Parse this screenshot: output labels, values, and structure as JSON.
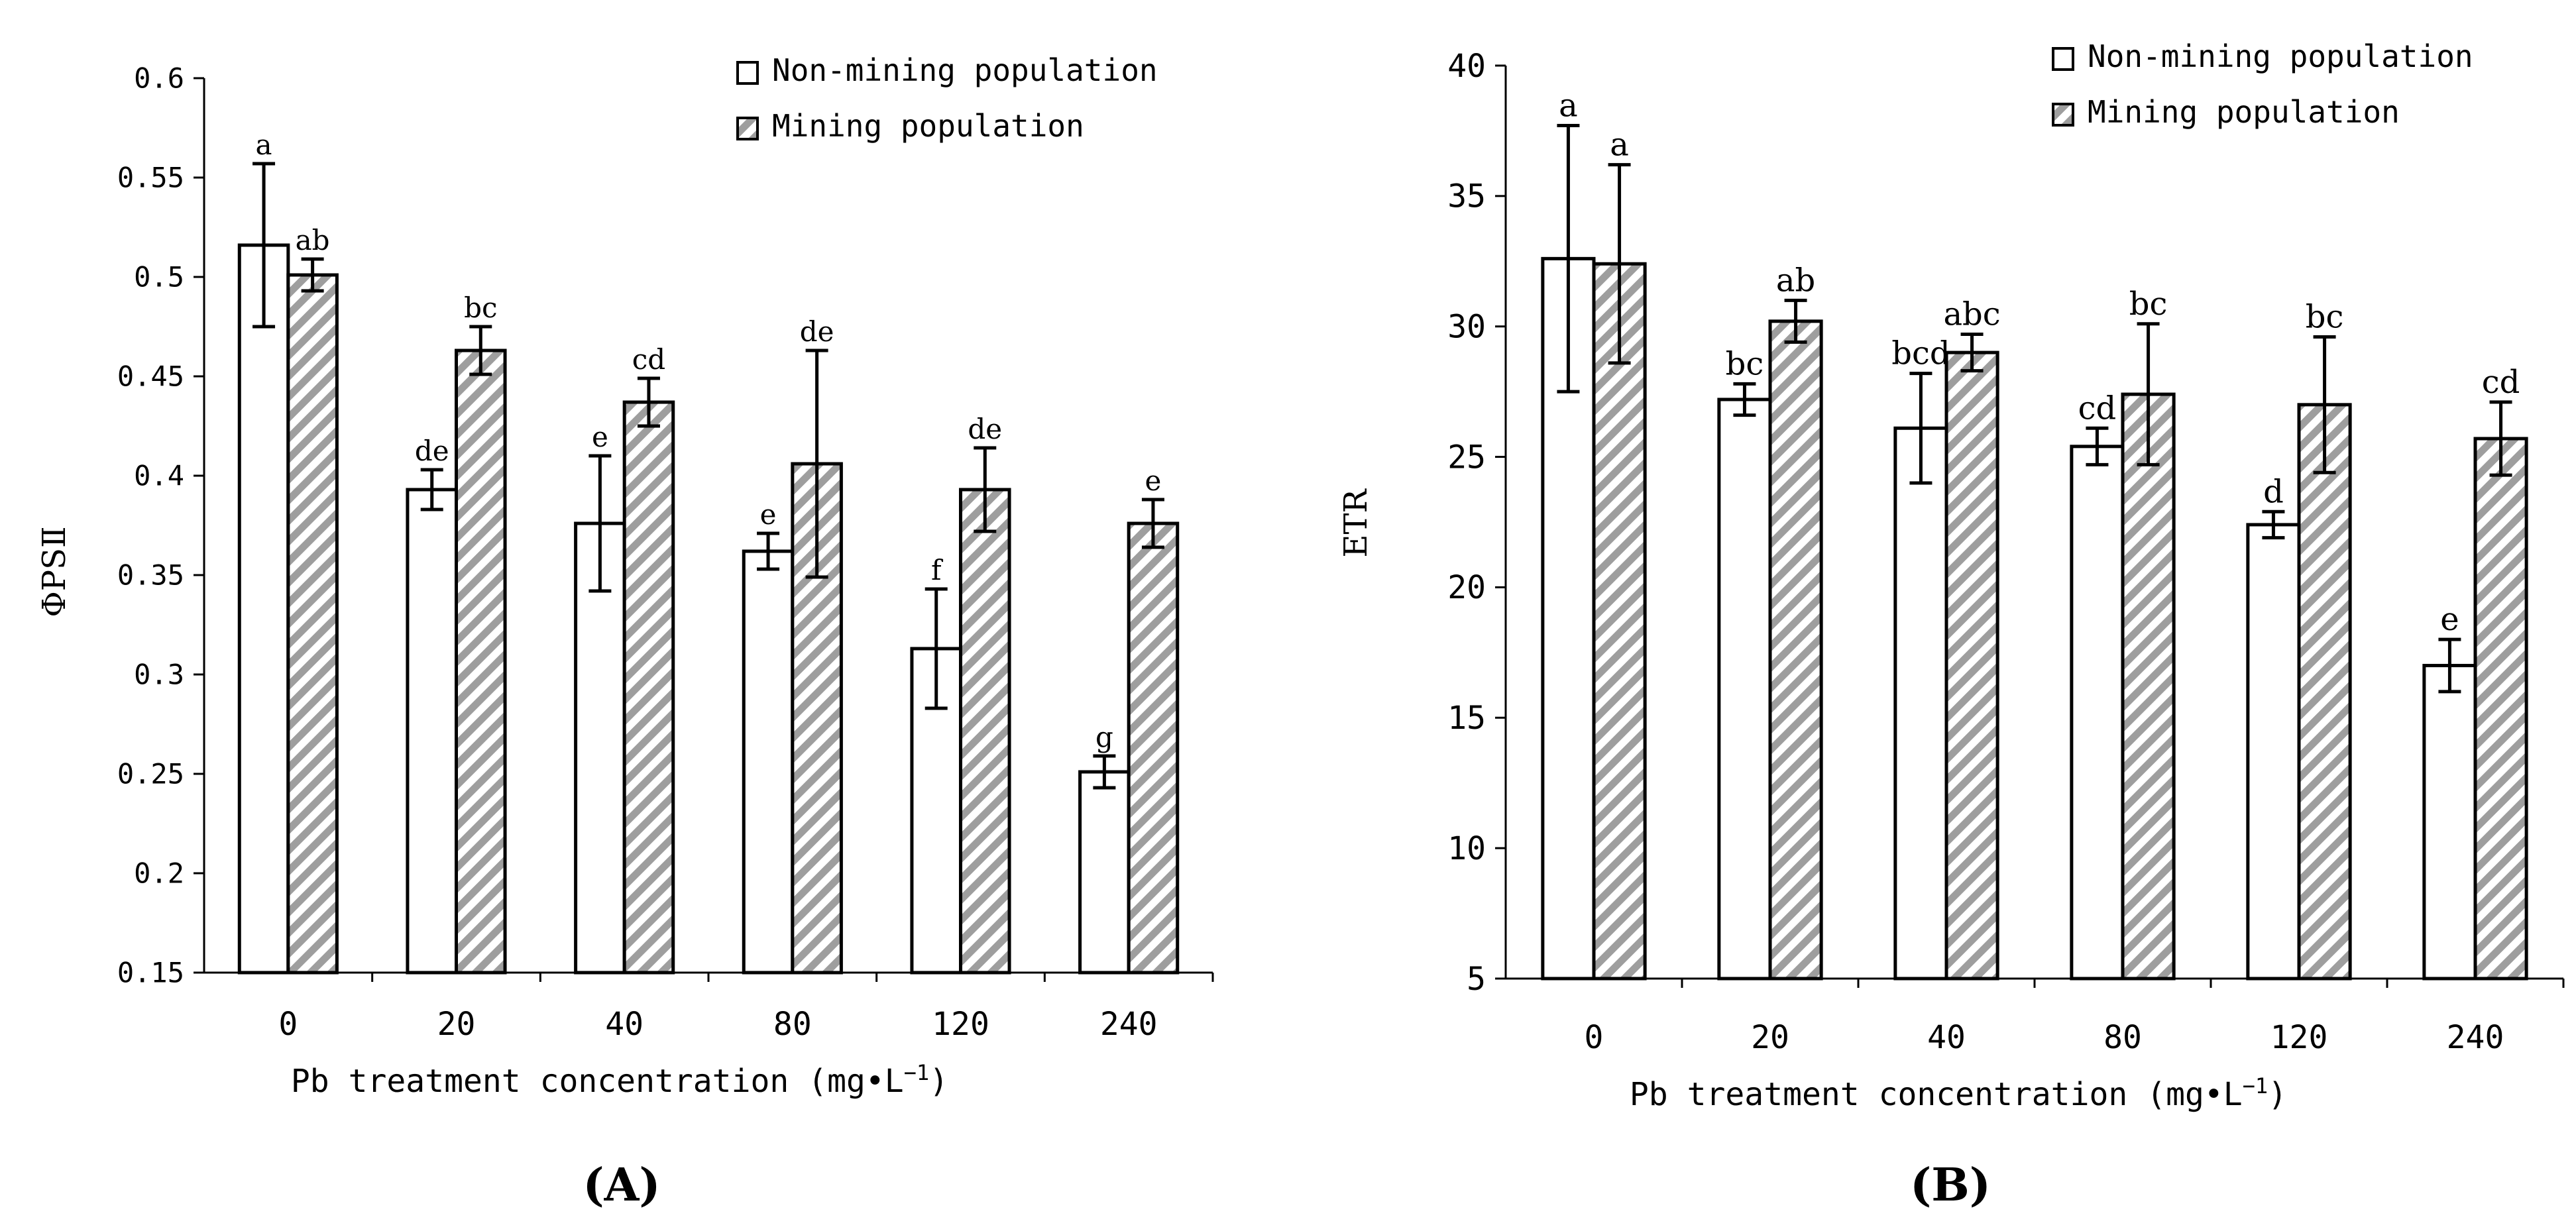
{
  "chart_data": [
    {
      "type": "bar",
      "title": "",
      "panel_label": "(A)",
      "xlabel": "Pb treatment concentration (mg•L",
      "xlabel_sup": "−1",
      "xlabel_close": ")",
      "ylabel": "ΦPSⅡ",
      "categories": [
        "0",
        "20",
        "40",
        "80",
        "120",
        "240"
      ],
      "ylim": [
        0.15,
        0.6
      ],
      "yticks": [
        0.15,
        0.2,
        0.25,
        0.3,
        0.35,
        0.4,
        0.45,
        0.5,
        0.55,
        0.6
      ],
      "ytick_labels": [
        "0.15",
        "0.2",
        "0.25",
        "0.3",
        "0.35",
        "0.4",
        "0.45",
        "0.5",
        "0.55",
        "0.6"
      ],
      "legend_position": "top-right",
      "series": [
        {
          "name": "Non-mining population",
          "pattern": "open",
          "values": [
            0.516,
            0.393,
            0.376,
            0.362,
            0.313,
            0.251
          ],
          "errors": [
            0.041,
            0.01,
            0.034,
            0.009,
            0.03,
            0.008
          ],
          "letters": [
            "a",
            "de",
            "e",
            "e",
            "f",
            "g"
          ]
        },
        {
          "name": "Mining population",
          "pattern": "hatched",
          "values": [
            0.501,
            0.463,
            0.437,
            0.406,
            0.393,
            0.376
          ],
          "errors": [
            0.008,
            0.012,
            0.012,
            0.057,
            0.021,
            0.012
          ],
          "letters": [
            "ab",
            "bc",
            "cd",
            "de",
            "de",
            "e"
          ]
        }
      ]
    },
    {
      "type": "bar",
      "title": "",
      "panel_label": "(B)",
      "xlabel": "Pb treatment concentration (mg•L",
      "xlabel_sup": "−1",
      "xlabel_close": ")",
      "ylabel": "ETR",
      "categories": [
        "0",
        "20",
        "40",
        "80",
        "120",
        "240"
      ],
      "ylim": [
        5,
        40
      ],
      "yticks": [
        5,
        10,
        15,
        20,
        25,
        30,
        35,
        40
      ],
      "ytick_labels": [
        "5",
        "10",
        "15",
        "20",
        "25",
        "30",
        "35",
        "40"
      ],
      "legend_position": "top-right",
      "series": [
        {
          "name": "Non-mining population",
          "pattern": "open",
          "values": [
            32.6,
            27.2,
            26.1,
            25.4,
            22.4,
            17.0
          ],
          "errors": [
            5.1,
            0.6,
            2.1,
            0.7,
            0.5,
            1.0
          ],
          "letters": [
            "a",
            "bc",
            "bcd",
            "cd",
            "d",
            "e"
          ]
        },
        {
          "name": "Mining population",
          "pattern": "hatched",
          "values": [
            32.4,
            30.2,
            29.0,
            27.4,
            27.0,
            25.7
          ],
          "errors": [
            3.8,
            0.8,
            0.7,
            2.7,
            2.6,
            1.4
          ],
          "letters": [
            "a",
            "ab",
            "abc",
            "bc",
            "bc",
            "cd"
          ]
        }
      ]
    }
  ]
}
